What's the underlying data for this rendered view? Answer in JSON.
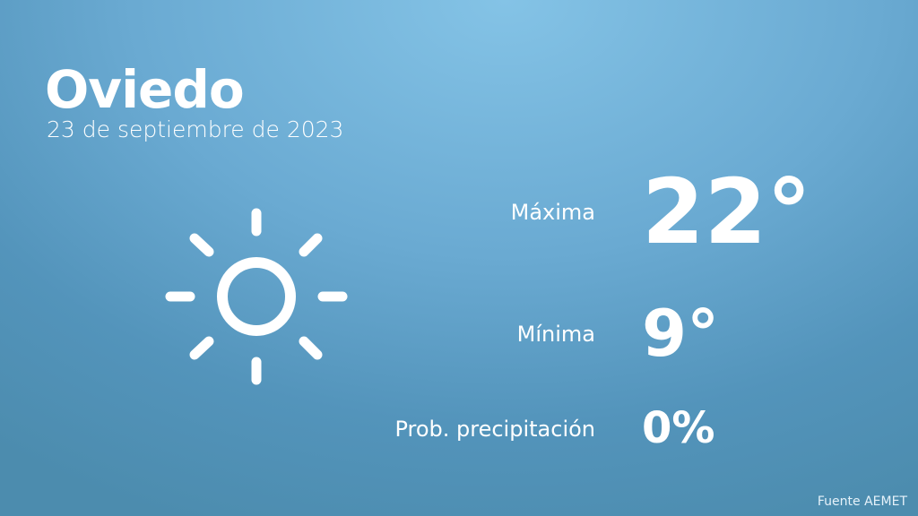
{
  "city": "Oviedo",
  "date": "23 de septiembre de 2023",
  "icon": "sun-icon",
  "max_label": "Máxima",
  "max_value": "22°",
  "min_label": "Mínima",
  "min_value": "9°",
  "precip_label": "Prob. precipitación",
  "precip_value": "0%",
  "source": "Fuente AEMET"
}
